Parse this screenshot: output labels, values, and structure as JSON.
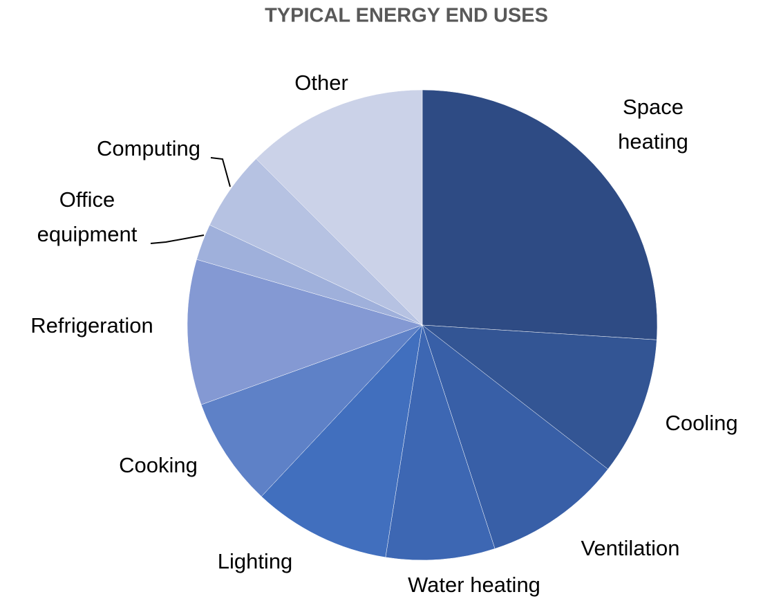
{
  "chart_data": {
    "type": "pie",
    "title": "TYPICAL ENERGY END USES",
    "categories": [
      "Space heating",
      "Cooling",
      "Ventilation",
      "Water heating",
      "Lighting",
      "Cooking",
      "Refrigeration",
      "Office equipment",
      "Computing",
      "Other"
    ],
    "values": [
      26,
      9.5,
      9.5,
      7.5,
      9.5,
      7.5,
      10,
      2.5,
      5.5,
      12.5
    ],
    "colors": [
      "#2e4b84",
      "#335594",
      "#385fa7",
      "#3d67b3",
      "#416fbe",
      "#5e81c7",
      "#8499d3",
      "#9fb0db",
      "#b6c2e2",
      "#cbd2e8"
    ]
  }
}
